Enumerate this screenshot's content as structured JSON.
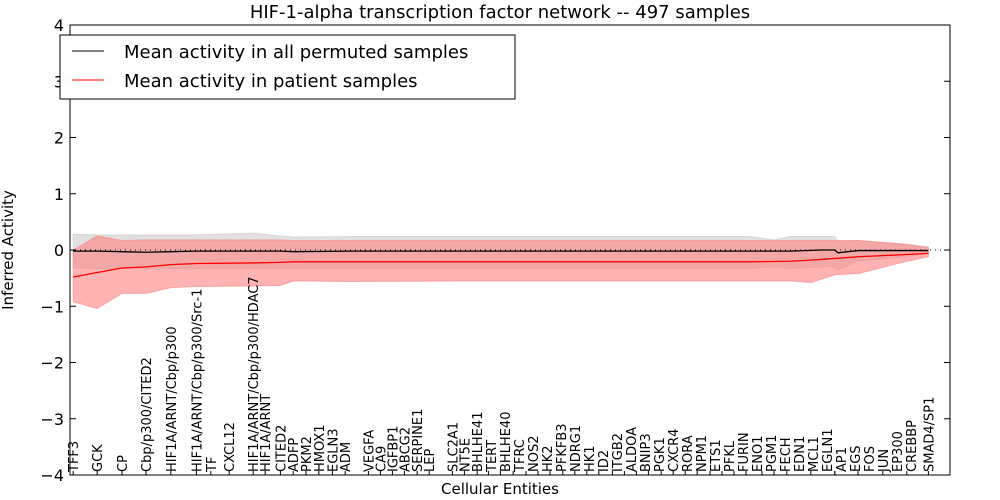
{
  "chart_data": {
    "type": "line",
    "title": "HIF-1-alpha transcription factor network -- 497 samples",
    "xlabel": "Cellular Entities",
    "ylabel": "Inferred Activity",
    "ylim": [
      -4,
      4
    ],
    "xlim": [
      0,
      110
    ],
    "yticks": [
      -4,
      -3,
      -2,
      -1,
      0,
      1,
      2,
      3,
      4
    ],
    "ytick_labels": [
      "−4",
      "−3",
      "−2",
      "−1",
      "0",
      "1",
      "2",
      "3",
      "4"
    ],
    "legend": {
      "placement": "top-left",
      "entries": [
        "Mean activity in all permuted samples",
        "Mean activity in patient samples"
      ]
    },
    "colors": {
      "permuted": "#000000",
      "patient": "#ff0000",
      "permuted_band": "#c8c8c8",
      "patient_band": "#ff8080"
    },
    "entities": [
      {
        "label": "TFF3",
        "x": 0.4
      },
      {
        "label": "GCK",
        "x": 3.4
      },
      {
        "label": "CP",
        "x": 6.5
      },
      {
        "label": "Cbp/p300/CITED2",
        "x": 9.5
      },
      {
        "label": "HIF1A/ARNT/Cbp/p300",
        "x": 12.6
      },
      {
        "label": "HIF1A/ARNT/Cbp/p300/Src-1",
        "x": 15.8
      },
      {
        "label": "TF",
        "x": 17.6
      },
      {
        "label": "CXCL12",
        "x": 19.9
      },
      {
        "label": "HIF1A/ARNT/Cbp/p300/HDAC7",
        "x": 22.9
      },
      {
        "label": "HIF1A/ARNT",
        "x": 24.4
      },
      {
        "label": "CITED2",
        "x": 26.3
      },
      {
        "label": "ADFP",
        "x": 27.9
      },
      {
        "label": "PKM2",
        "x": 29.5
      },
      {
        "label": "HMOX1",
        "x": 31.1
      },
      {
        "label": "EGLN3",
        "x": 32.8
      },
      {
        "label": "ADM",
        "x": 34.4
      },
      {
        "label": "VEGFA",
        "x": 37.3
      },
      {
        "label": "CA9",
        "x": 38.8
      },
      {
        "label": "IGFBP1",
        "x": 40.3
      },
      {
        "label": "ABCG2",
        "x": 41.8
      },
      {
        "label": "SERPINE1",
        "x": 43.4
      },
      {
        "label": "LEP",
        "x": 44.9
      },
      {
        "label": "SLC2A1",
        "x": 47.8
      },
      {
        "label": "NT5E",
        "x": 49.3
      },
      {
        "label": "BHLHE41",
        "x": 50.9
      },
      {
        "label": "TERT",
        "x": 52.3
      },
      {
        "label": "BHLHE40",
        "x": 53.8
      },
      {
        "label": "TFRC",
        "x": 55.4
      },
      {
        "label": "NOS2",
        "x": 57.0
      },
      {
        "label": "HK2",
        "x": 58.5
      },
      {
        "label": "PFKFB3",
        "x": 60.0
      },
      {
        "label": "NDRG1",
        "x": 61.6
      },
      {
        "label": "HK1",
        "x": 63.1
      },
      {
        "label": "ID2",
        "x": 64.6
      },
      {
        "label": "ITGB2",
        "x": 66.1
      },
      {
        "label": "ALDOA",
        "x": 67.8
      },
      {
        "label": "BNIP3",
        "x": 69.3
      },
      {
        "label": "PGK1",
        "x": 70.8
      },
      {
        "label": "CXCR4",
        "x": 72.3
      },
      {
        "label": "RORA",
        "x": 73.9
      },
      {
        "label": "NPM1",
        "x": 75.4
      },
      {
        "label": "ETS1",
        "x": 76.9
      },
      {
        "label": "PFKL",
        "x": 78.4
      },
      {
        "label": "FURIN",
        "x": 80.0
      },
      {
        "label": "ENO1",
        "x": 81.5
      },
      {
        "label": "PGM1",
        "x": 83.0
      },
      {
        "label": "FECH",
        "x": 84.5
      },
      {
        "label": "EDN1",
        "x": 86.5
      },
      {
        "label": "MCL1",
        "x": 88.0
      },
      {
        "label": "EGLN1",
        "x": 89.6
      },
      {
        "label": "AP1",
        "x": 92.6
      },
      {
        "label": "EGS",
        "x": 95.6
      },
      {
        "label": "FOS",
        "x": 95.6
      },
      {
        "label": "JUN",
        "x": 98.5
      },
      {
        "label": "EP300",
        "x": 101.6
      },
      {
        "label": "CREBBP",
        "x": 104.6
      },
      {
        "label": "SMAD4/SP1",
        "x": 107.3
      }
    ],
    "series": [
      {
        "name": "Mean activity in all permuted samples",
        "x": [
          0.4,
          3.4,
          6.5,
          9.5,
          12.6,
          15.8,
          22.9,
          26.3,
          28,
          35,
          50,
          70,
          85,
          88,
          90,
          94,
          95.6,
          96,
          98.5,
          104.6,
          107.3
        ],
        "mean": [
          -0.02,
          -0.02,
          -0.03,
          -0.04,
          -0.03,
          -0.02,
          -0.02,
          -0.02,
          -0.03,
          -0.02,
          -0.02,
          -0.02,
          -0.02,
          -0.02,
          -0.02,
          0.0,
          0.0,
          -0.05,
          -0.01,
          -0.01,
          -0.01
        ],
        "upper": [
          0.28,
          0.27,
          0.27,
          0.27,
          0.27,
          0.27,
          0.3,
          0.25,
          0.23,
          0.24,
          0.24,
          0.24,
          0.24,
          0.18,
          0.24,
          0.24,
          0.24,
          0.15,
          0.17,
          0.1,
          0.06
        ],
        "lower": [
          -0.32,
          -0.33,
          -0.33,
          -0.33,
          -0.33,
          -0.33,
          -0.33,
          -0.33,
          -0.33,
          -0.33,
          -0.33,
          -0.33,
          -0.33,
          -0.3,
          -0.33,
          -0.3,
          -0.3,
          -0.35,
          -0.2,
          -0.12,
          -0.06
        ]
      },
      {
        "name": "Mean activity in patient samples",
        "x": [
          0.4,
          3.4,
          6.5,
          9.5,
          12.6,
          15.8,
          22.9,
          26.3,
          28,
          35,
          50,
          70,
          85,
          90,
          92.6,
          95.6,
          98.5,
          104.6,
          107.3
        ],
        "mean": [
          -0.48,
          -0.4,
          -0.32,
          -0.3,
          -0.26,
          -0.24,
          -0.23,
          -0.22,
          -0.21,
          -0.21,
          -0.21,
          -0.21,
          -0.21,
          -0.2,
          -0.18,
          -0.15,
          -0.12,
          -0.08,
          -0.06
        ],
        "upper": [
          0.0,
          0.25,
          0.17,
          0.18,
          0.18,
          0.18,
          0.18,
          0.18,
          0.17,
          0.17,
          0.17,
          0.17,
          0.17,
          0.17,
          0.17,
          0.17,
          0.17,
          0.1,
          0.04
        ],
        "lower": [
          -0.92,
          -1.04,
          -0.77,
          -0.77,
          -0.67,
          -0.65,
          -0.64,
          -0.63,
          -0.55,
          -0.56,
          -0.55,
          -0.55,
          -0.55,
          -0.55,
          -0.58,
          -0.44,
          -0.42,
          -0.2,
          -0.12
        ]
      }
    ]
  }
}
